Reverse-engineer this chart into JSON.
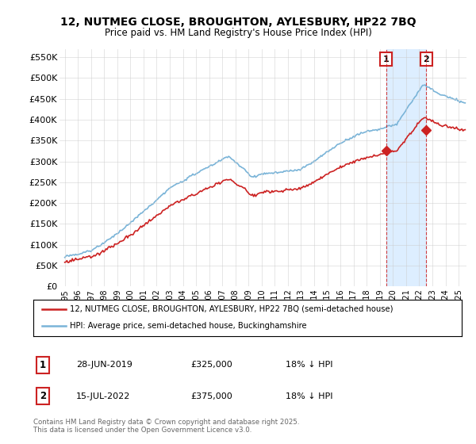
{
  "title_line1": "12, NUTMEG CLOSE, BROUGHTON, AYLESBURY, HP22 7BQ",
  "title_line2": "Price paid vs. HM Land Registry's House Price Index (HPI)",
  "ylim": [
    0,
    570000
  ],
  "yticks": [
    0,
    50000,
    100000,
    150000,
    200000,
    250000,
    300000,
    350000,
    400000,
    450000,
    500000,
    550000
  ],
  "ytick_labels": [
    "£0",
    "£50K",
    "£100K",
    "£150K",
    "£200K",
    "£250K",
    "£300K",
    "£350K",
    "£400K",
    "£450K",
    "£500K",
    "£550K"
  ],
  "hpi_color": "#7ab4d8",
  "price_color": "#cc2222",
  "shade_color": "#ddeeff",
  "marker1_year": 2019.49,
  "marker1_price": 325000,
  "marker1_label": "28-JUN-2019",
  "marker1_text": "£325,000",
  "marker1_hpi_pct": "18% ↓ HPI",
  "marker2_year": 2022.54,
  "marker2_price": 375000,
  "marker2_label": "15-JUL-2022",
  "marker2_text": "£375,000",
  "marker2_hpi_pct": "18% ↓ HPI",
  "legend_line1": "12, NUTMEG CLOSE, BROUGHTON, AYLESBURY, HP22 7BQ (semi-detached house)",
  "legend_line2": "HPI: Average price, semi-detached house, Buckinghamshire",
  "footer": "Contains HM Land Registry data © Crown copyright and database right 2025.\nThis data is licensed under the Open Government Licence v3.0.",
  "background_color": "#ffffff",
  "grid_color": "#cccccc",
  "xmin": 1994.6,
  "xmax": 2025.6
}
